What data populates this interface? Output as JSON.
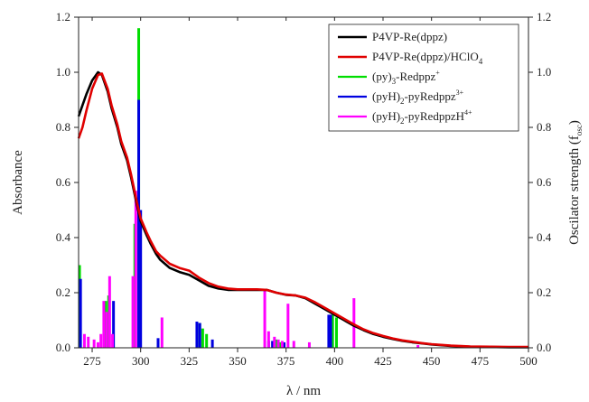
{
  "chart_data": {
    "type": "line",
    "title": "",
    "xlabel": "λ / nm",
    "ylabel": "Absorbance",
    "y2label": "Oscilator strength (f",
    "y2label_sub": "osc",
    "y2label_close": ")",
    "xlim": [
      268,
      500
    ],
    "ylim": [
      0,
      1.2
    ],
    "y2lim": [
      0,
      1.2
    ],
    "xticks": [
      275,
      300,
      325,
      350,
      375,
      400,
      425,
      450,
      475,
      500
    ],
    "yticks": [
      0.0,
      0.2,
      0.4,
      0.6,
      0.8,
      1.0,
      1.2
    ],
    "ytick_labels": [
      "0.0",
      "0.2",
      "0.4",
      "0.6",
      "0.8",
      "1.0",
      "1.2"
    ],
    "grid": false,
    "legend_position": "top-right",
    "series": [
      {
        "name": "P4VP-Re(dppz)",
        "color": "#000000",
        "style": "line",
        "x": [
          268,
          270,
          272,
          275,
          278,
          280,
          283,
          285,
          288,
          290,
          293,
          295,
          298,
          300,
          303,
          305,
          308,
          310,
          315,
          320,
          325,
          330,
          335,
          340,
          345,
          350,
          355,
          360,
          365,
          370,
          375,
          380,
          385,
          390,
          395,
          400,
          405,
          410,
          415,
          420,
          425,
          430,
          435,
          440,
          445,
          450,
          460,
          470,
          480,
          490,
          500
        ],
        "y": [
          0.84,
          0.88,
          0.92,
          0.97,
          1.0,
          0.99,
          0.93,
          0.87,
          0.8,
          0.74,
          0.68,
          0.62,
          0.52,
          0.46,
          0.41,
          0.38,
          0.34,
          0.32,
          0.29,
          0.275,
          0.265,
          0.245,
          0.225,
          0.215,
          0.21,
          0.21,
          0.21,
          0.21,
          0.21,
          0.2,
          0.192,
          0.19,
          0.18,
          0.16,
          0.14,
          0.12,
          0.1,
          0.08,
          0.064,
          0.05,
          0.04,
          0.032,
          0.025,
          0.02,
          0.016,
          0.012,
          0.007,
          0.004,
          0.003,
          0.002,
          0.002
        ]
      },
      {
        "name": "P4VP-Re(dppz)/HClO",
        "name_sub": "4",
        "color": "#e00000",
        "style": "line",
        "x": [
          268,
          270,
          272,
          275,
          278,
          280,
          283,
          285,
          288,
          290,
          293,
          295,
          298,
          300,
          303,
          305,
          308,
          310,
          315,
          320,
          325,
          330,
          335,
          340,
          345,
          350,
          355,
          360,
          365,
          370,
          375,
          380,
          385,
          390,
          395,
          400,
          405,
          410,
          415,
          420,
          425,
          430,
          435,
          440,
          445,
          450,
          460,
          470,
          480,
          490,
          500
        ],
        "y": [
          0.76,
          0.8,
          0.86,
          0.94,
          0.99,
          0.995,
          0.94,
          0.88,
          0.81,
          0.75,
          0.69,
          0.63,
          0.53,
          0.47,
          0.42,
          0.39,
          0.35,
          0.335,
          0.305,
          0.29,
          0.28,
          0.255,
          0.235,
          0.222,
          0.215,
          0.212,
          0.212,
          0.212,
          0.21,
          0.2,
          0.193,
          0.19,
          0.182,
          0.165,
          0.145,
          0.125,
          0.105,
          0.085,
          0.067,
          0.053,
          0.043,
          0.034,
          0.027,
          0.022,
          0.017,
          0.013,
          0.008,
          0.005,
          0.004,
          0.003,
          0.003
        ]
      },
      {
        "name": "(py)",
        "name_sub": "3",
        "name_rest": "-Redppz",
        "name_sup": "+",
        "color": "#00dd00",
        "style": "sticks",
        "x": [
          268.5,
          282,
          283.5,
          297,
          299,
          330.5,
          332,
          334,
          370,
          372,
          399,
          401
        ],
        "y": [
          0.3,
          0.17,
          0.19,
          0.45,
          1.16,
          0.09,
          0.07,
          0.05,
          0.03,
          0.02,
          0.12,
          0.11
        ]
      },
      {
        "name": "(pyH)",
        "name_sub": "2",
        "name_rest": "-pyRedppz",
        "name_sup": "3+",
        "color": "#0000e0",
        "style": "sticks",
        "x": [
          269,
          286,
          299,
          300,
          309,
          329,
          330.5,
          337,
          366,
          368,
          374,
          397,
          398
        ],
        "y": [
          0.25,
          0.17,
          0.9,
          0.5,
          0.035,
          0.095,
          0.09,
          0.03,
          0.025,
          0.025,
          0.02,
          0.12,
          0.12
        ]
      },
      {
        "name": "(pyH)",
        "name_sub": "2",
        "name_rest": "-pyRedppzH",
        "name_sup": "4+",
        "color": "#ff00ff",
        "style": "sticks",
        "x": [
          271,
          273,
          276,
          278,
          279.5,
          281,
          282.5,
          284,
          285.5,
          296,
          297.5,
          311,
          364,
          366,
          369,
          371,
          373,
          376,
          379,
          387,
          410,
          443
        ],
        "y": [
          0.05,
          0.04,
          0.03,
          0.02,
          0.05,
          0.17,
          0.13,
          0.26,
          0.05,
          0.26,
          0.57,
          0.11,
          0.21,
          0.06,
          0.04,
          0.03,
          0.025,
          0.16,
          0.025,
          0.02,
          0.18,
          0.01
        ]
      }
    ]
  }
}
